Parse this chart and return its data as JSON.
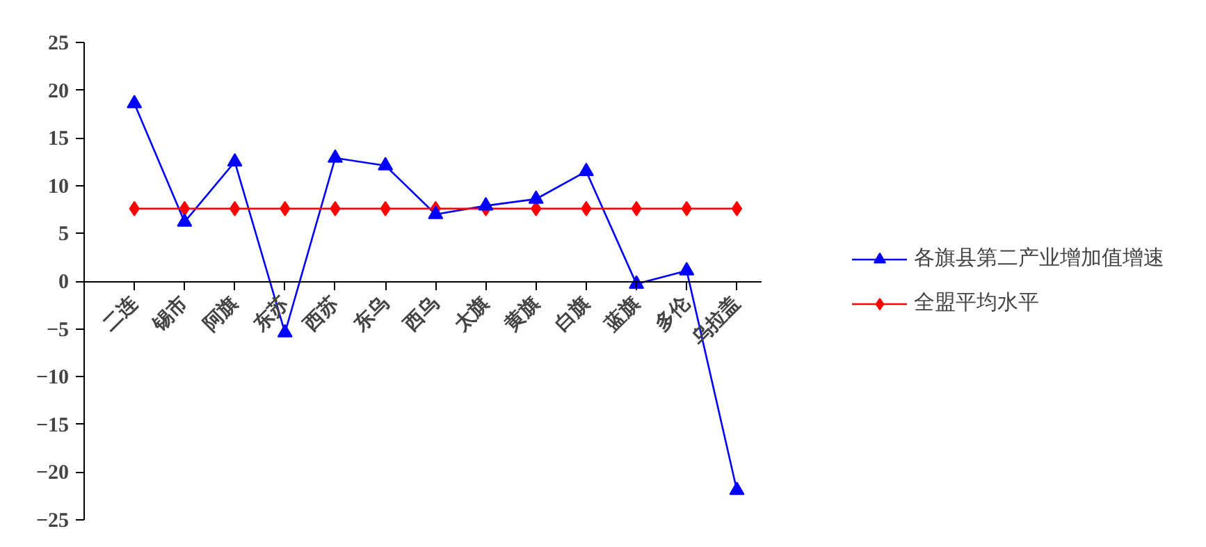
{
  "chart_data": {
    "type": "line",
    "categories": [
      "二连",
      "锡市",
      "阿旗",
      "东苏",
      "西苏",
      "东乌",
      "西乌",
      "太旗",
      "黄旗",
      "白旗",
      "蓝旗",
      "多伦",
      "乌拉盖"
    ],
    "series": [
      {
        "name": "各旗县第二产业增加值增速",
        "color": "#0000ff",
        "marker": "triangle",
        "values": [
          18.6,
          6.2,
          12.5,
          -5.4,
          12.9,
          12.1,
          7.0,
          7.9,
          8.6,
          11.5,
          -0.3,
          1.1,
          -21.9
        ]
      },
      {
        "name": "全盟平均水平",
        "color": "#ff0000",
        "marker": "diamond",
        "values": [
          7.6,
          7.6,
          7.6,
          7.6,
          7.6,
          7.6,
          7.6,
          7.6,
          7.6,
          7.6,
          7.6,
          7.6,
          7.6
        ]
      }
    ],
    "ylim": [
      -25,
      25
    ],
    "yticks": [
      -25,
      -20,
      -15,
      -10,
      -5,
      0,
      5,
      10,
      15,
      20,
      25
    ],
    "grid": false,
    "legend": "right"
  }
}
